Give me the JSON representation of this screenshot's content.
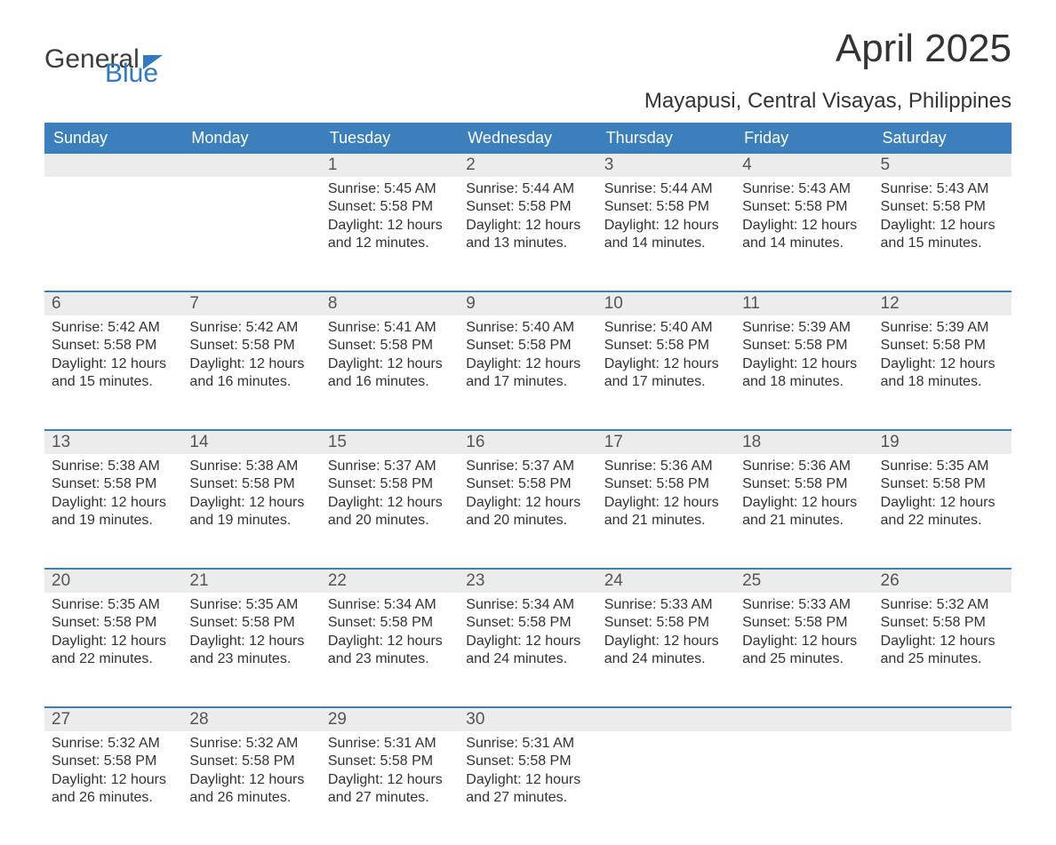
{
  "logo": {
    "word1": "General",
    "word2": "Blue"
  },
  "title": "April 2025",
  "subtitle": "Mayapusi, Central Visayas, Philippines",
  "colors": {
    "header_bg": "#3b7fbd",
    "header_text": "#ffffff",
    "daynum_bg": "#ececec",
    "cell_border": "#3b7fbd",
    "body_text": "#333333",
    "logo_gray": "#3d3d3d",
    "logo_blue": "#2f7ac0"
  },
  "typography": {
    "title_fontsize": 44,
    "subtitle_fontsize": 24,
    "weekday_fontsize": 18,
    "daynum_fontsize": 19,
    "body_fontsize": 16
  },
  "weekdays": [
    "Sunday",
    "Monday",
    "Tuesday",
    "Wednesday",
    "Thursday",
    "Friday",
    "Saturday"
  ],
  "weeks": [
    [
      {
        "day": "",
        "sunrise": "",
        "sunset": "",
        "daylight": ""
      },
      {
        "day": "",
        "sunrise": "",
        "sunset": "",
        "daylight": ""
      },
      {
        "day": "1",
        "sunrise": "Sunrise: 5:45 AM",
        "sunset": "Sunset: 5:58 PM",
        "daylight": "Daylight: 12 hours and 12 minutes."
      },
      {
        "day": "2",
        "sunrise": "Sunrise: 5:44 AM",
        "sunset": "Sunset: 5:58 PM",
        "daylight": "Daylight: 12 hours and 13 minutes."
      },
      {
        "day": "3",
        "sunrise": "Sunrise: 5:44 AM",
        "sunset": "Sunset: 5:58 PM",
        "daylight": "Daylight: 12 hours and 14 minutes."
      },
      {
        "day": "4",
        "sunrise": "Sunrise: 5:43 AM",
        "sunset": "Sunset: 5:58 PM",
        "daylight": "Daylight: 12 hours and 14 minutes."
      },
      {
        "day": "5",
        "sunrise": "Sunrise: 5:43 AM",
        "sunset": "Sunset: 5:58 PM",
        "daylight": "Daylight: 12 hours and 15 minutes."
      }
    ],
    [
      {
        "day": "6",
        "sunrise": "Sunrise: 5:42 AM",
        "sunset": "Sunset: 5:58 PM",
        "daylight": "Daylight: 12 hours and 15 minutes."
      },
      {
        "day": "7",
        "sunrise": "Sunrise: 5:42 AM",
        "sunset": "Sunset: 5:58 PM",
        "daylight": "Daylight: 12 hours and 16 minutes."
      },
      {
        "day": "8",
        "sunrise": "Sunrise: 5:41 AM",
        "sunset": "Sunset: 5:58 PM",
        "daylight": "Daylight: 12 hours and 16 minutes."
      },
      {
        "day": "9",
        "sunrise": "Sunrise: 5:40 AM",
        "sunset": "Sunset: 5:58 PM",
        "daylight": "Daylight: 12 hours and 17 minutes."
      },
      {
        "day": "10",
        "sunrise": "Sunrise: 5:40 AM",
        "sunset": "Sunset: 5:58 PM",
        "daylight": "Daylight: 12 hours and 17 minutes."
      },
      {
        "day": "11",
        "sunrise": "Sunrise: 5:39 AM",
        "sunset": "Sunset: 5:58 PM",
        "daylight": "Daylight: 12 hours and 18 minutes."
      },
      {
        "day": "12",
        "sunrise": "Sunrise: 5:39 AM",
        "sunset": "Sunset: 5:58 PM",
        "daylight": "Daylight: 12 hours and 18 minutes."
      }
    ],
    [
      {
        "day": "13",
        "sunrise": "Sunrise: 5:38 AM",
        "sunset": "Sunset: 5:58 PM",
        "daylight": "Daylight: 12 hours and 19 minutes."
      },
      {
        "day": "14",
        "sunrise": "Sunrise: 5:38 AM",
        "sunset": "Sunset: 5:58 PM",
        "daylight": "Daylight: 12 hours and 19 minutes."
      },
      {
        "day": "15",
        "sunrise": "Sunrise: 5:37 AM",
        "sunset": "Sunset: 5:58 PM",
        "daylight": "Daylight: 12 hours and 20 minutes."
      },
      {
        "day": "16",
        "sunrise": "Sunrise: 5:37 AM",
        "sunset": "Sunset: 5:58 PM",
        "daylight": "Daylight: 12 hours and 20 minutes."
      },
      {
        "day": "17",
        "sunrise": "Sunrise: 5:36 AM",
        "sunset": "Sunset: 5:58 PM",
        "daylight": "Daylight: 12 hours and 21 minutes."
      },
      {
        "day": "18",
        "sunrise": "Sunrise: 5:36 AM",
        "sunset": "Sunset: 5:58 PM",
        "daylight": "Daylight: 12 hours and 21 minutes."
      },
      {
        "day": "19",
        "sunrise": "Sunrise: 5:35 AM",
        "sunset": "Sunset: 5:58 PM",
        "daylight": "Daylight: 12 hours and 22 minutes."
      }
    ],
    [
      {
        "day": "20",
        "sunrise": "Sunrise: 5:35 AM",
        "sunset": "Sunset: 5:58 PM",
        "daylight": "Daylight: 12 hours and 22 minutes."
      },
      {
        "day": "21",
        "sunrise": "Sunrise: 5:35 AM",
        "sunset": "Sunset: 5:58 PM",
        "daylight": "Daylight: 12 hours and 23 minutes."
      },
      {
        "day": "22",
        "sunrise": "Sunrise: 5:34 AM",
        "sunset": "Sunset: 5:58 PM",
        "daylight": "Daylight: 12 hours and 23 minutes."
      },
      {
        "day": "23",
        "sunrise": "Sunrise: 5:34 AM",
        "sunset": "Sunset: 5:58 PM",
        "daylight": "Daylight: 12 hours and 24 minutes."
      },
      {
        "day": "24",
        "sunrise": "Sunrise: 5:33 AM",
        "sunset": "Sunset: 5:58 PM",
        "daylight": "Daylight: 12 hours and 24 minutes."
      },
      {
        "day": "25",
        "sunrise": "Sunrise: 5:33 AM",
        "sunset": "Sunset: 5:58 PM",
        "daylight": "Daylight: 12 hours and 25 minutes."
      },
      {
        "day": "26",
        "sunrise": "Sunrise: 5:32 AM",
        "sunset": "Sunset: 5:58 PM",
        "daylight": "Daylight: 12 hours and 25 minutes."
      }
    ],
    [
      {
        "day": "27",
        "sunrise": "Sunrise: 5:32 AM",
        "sunset": "Sunset: 5:58 PM",
        "daylight": "Daylight: 12 hours and 26 minutes."
      },
      {
        "day": "28",
        "sunrise": "Sunrise: 5:32 AM",
        "sunset": "Sunset: 5:58 PM",
        "daylight": "Daylight: 12 hours and 26 minutes."
      },
      {
        "day": "29",
        "sunrise": "Sunrise: 5:31 AM",
        "sunset": "Sunset: 5:58 PM",
        "daylight": "Daylight: 12 hours and 27 minutes."
      },
      {
        "day": "30",
        "sunrise": "Sunrise: 5:31 AM",
        "sunset": "Sunset: 5:58 PM",
        "daylight": "Daylight: 12 hours and 27 minutes."
      },
      {
        "day": "",
        "sunrise": "",
        "sunset": "",
        "daylight": ""
      },
      {
        "day": "",
        "sunrise": "",
        "sunset": "",
        "daylight": ""
      },
      {
        "day": "",
        "sunrise": "",
        "sunset": "",
        "daylight": ""
      }
    ]
  ]
}
